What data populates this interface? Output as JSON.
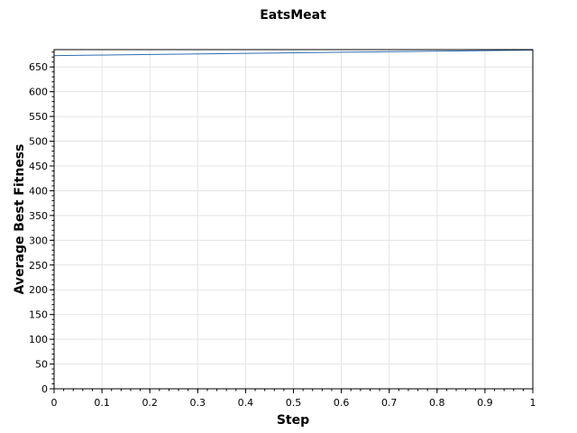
{
  "chart_data": {
    "type": "line",
    "title": "EatsMeat",
    "xlabel": "Step",
    "ylabel": "Average Best Fitness",
    "xlim": [
      0,
      1
    ],
    "ylim": [
      0,
      685
    ],
    "x_ticks": [
      "0",
      "0.1",
      "0.2",
      "0.3",
      "0.4",
      "0.5",
      "0.6",
      "0.7",
      "0.8",
      "0.9",
      "1"
    ],
    "y_ticks": [
      "0",
      "50",
      "100",
      "150",
      "200",
      "250",
      "300",
      "350",
      "400",
      "450",
      "500",
      "550",
      "600",
      "650"
    ],
    "grid": true,
    "series": [
      {
        "color": "#2e6db4",
        "x": [
          0,
          1
        ],
        "y": [
          673,
          684
        ]
      }
    ],
    "colors": {
      "grid": "#e4e4e4",
      "frame": "#000000"
    }
  }
}
